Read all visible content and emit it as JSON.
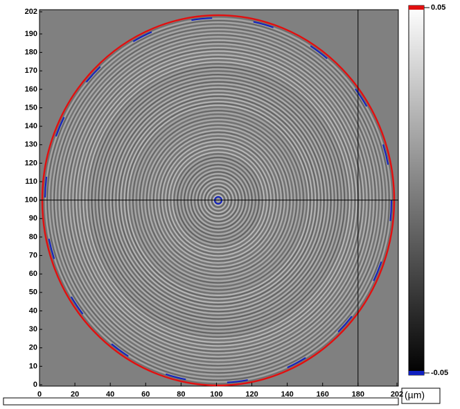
{
  "chart_data": {
    "type": "surface-map",
    "xlim": [
      0,
      202
    ],
    "ylim": [
      0,
      202
    ],
    "xticks": [
      0,
      20,
      40,
      60,
      80,
      100,
      120,
      140,
      160,
      180,
      202
    ],
    "yticks": [
      0,
      10,
      20,
      30,
      40,
      50,
      60,
      70,
      80,
      90,
      100,
      110,
      120,
      130,
      140,
      150,
      160,
      170,
      180,
      190,
      202
    ],
    "colorbar": {
      "range": [
        -0.05,
        0.05
      ],
      "ticks": [
        -0.05,
        0.05
      ],
      "unit": "(µm)"
    },
    "cursor": {
      "x": 180,
      "y": 100
    }
  }
}
